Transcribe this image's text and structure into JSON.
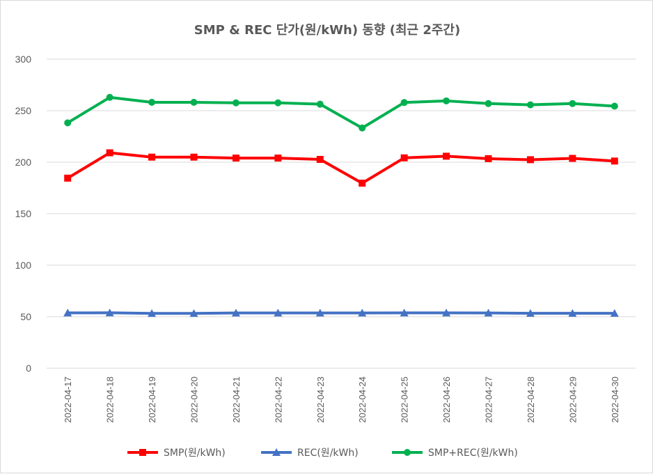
{
  "chart_data": {
    "type": "line",
    "title": "SMP & REC 단가(원/kWh) 동향 (최근 2주간)",
    "xlabel": "",
    "ylabel": "",
    "ylim": [
      0,
      300
    ],
    "yticks": [
      0,
      50,
      100,
      150,
      200,
      250,
      300
    ],
    "grid": true,
    "legend_position": "bottom",
    "categories": [
      "2022-04-17",
      "2022-04-18",
      "2022-04-19",
      "2022-04-20",
      "2022-04-21",
      "2022-04-22",
      "2022-04-23",
      "2022-04-24",
      "2022-04-25",
      "2022-04-26",
      "2022-04-27",
      "2022-04-28",
      "2022-04-29",
      "2022-04-30"
    ],
    "series": [
      {
        "name": "SMP(원/kWh)",
        "color": "#ff0000",
        "marker": "square",
        "values": [
          184.5,
          209.1,
          204.9,
          204.9,
          204.0,
          204.0,
          202.7,
          179.6,
          204.2,
          205.8,
          203.4,
          202.4,
          203.7,
          201.1
        ]
      },
      {
        "name": "REC(원/kWh)",
        "color": "#4472c4",
        "marker": "triangle",
        "values": [
          53.7,
          53.8,
          53.2,
          53.2,
          53.6,
          53.6,
          53.6,
          53.6,
          53.7,
          53.7,
          53.6,
          53.3,
          53.3,
          53.3
        ]
      },
      {
        "name": "SMP+REC(원/kWh)",
        "color": "#00b050",
        "marker": "circle",
        "values": [
          238.2,
          262.9,
          258.1,
          258.1,
          257.6,
          257.6,
          256.3,
          233.2,
          257.9,
          259.5,
          256.9,
          255.7,
          256.9,
          254.4
        ]
      }
    ]
  }
}
